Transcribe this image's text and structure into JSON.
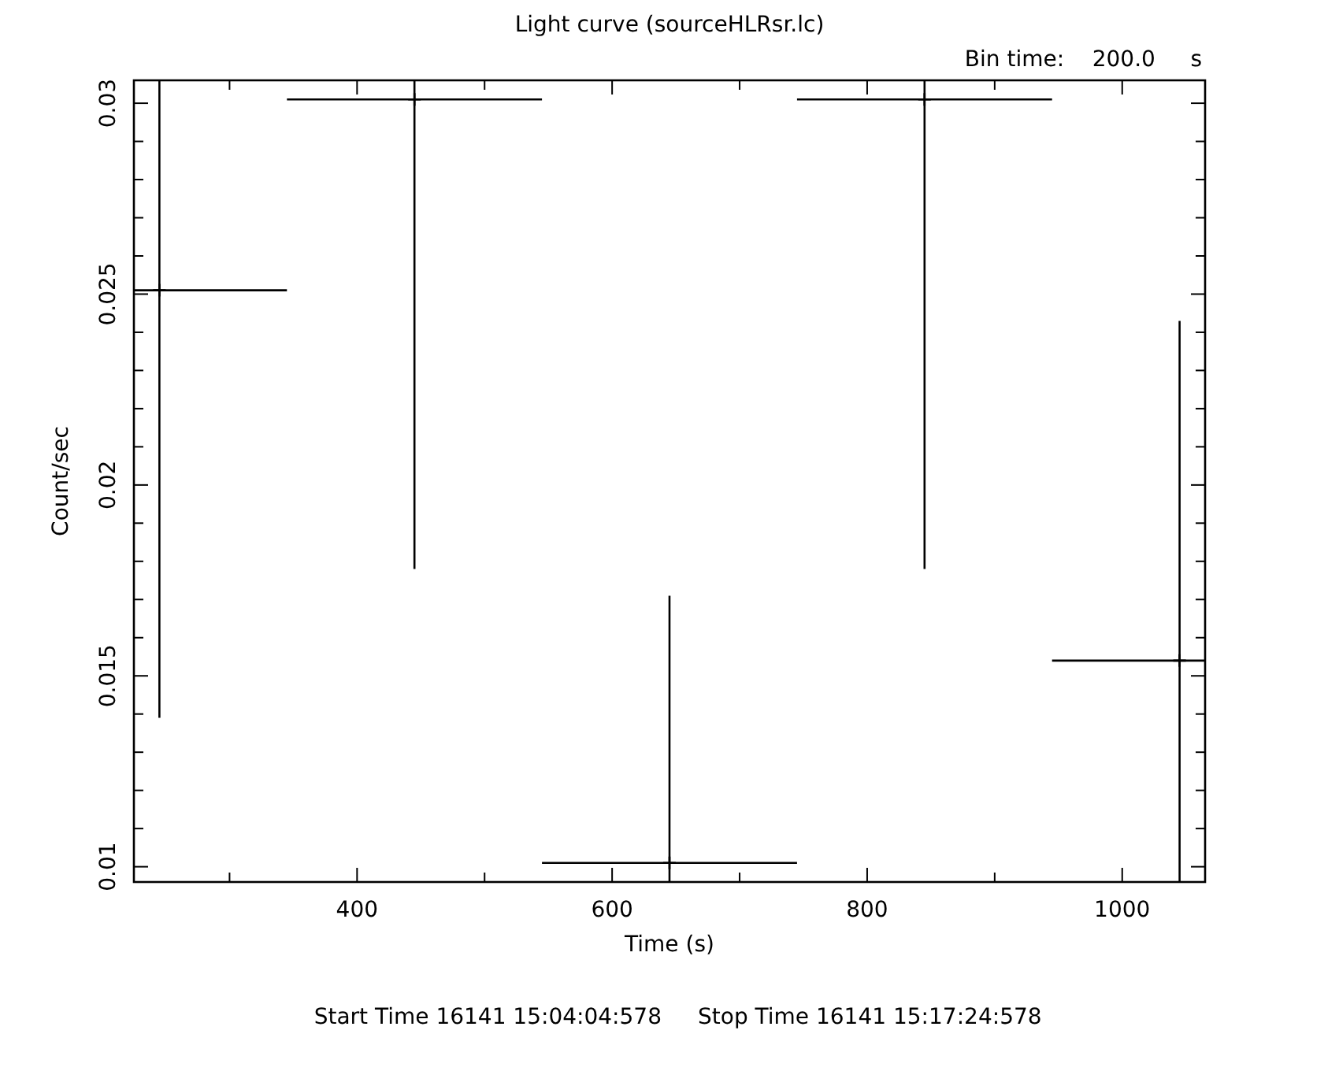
{
  "chart_data": {
    "type": "scatter",
    "title": "Light curve (sourceHLRsr.lc)",
    "xlabel": "Time (s)",
    "ylabel": "Count/sec",
    "annotations": [
      "Bin time:    200.0     s",
      "Start Time 16141 15:04:04:578",
      "Stop Time 16141 15:17:24:578"
    ],
    "x": [
      245,
      445,
      645,
      845,
      1045
    ],
    "series": [
      {
        "color": "#000000",
        "values": [
          0.0251,
          0.0301,
          0.0101,
          0.0301,
          0.0154
        ],
        "errors": [
          [
            0.0139,
            0.0306
          ],
          [
            0.0178,
            0.0306
          ],
          [
            0.0096,
            0.0171
          ],
          [
            0.0178,
            0.0306
          ],
          [
            0.0096,
            0.0243
          ]
        ],
        "xerrors": [
          [
            225,
            345
          ],
          [
            345,
            545
          ],
          [
            545,
            745
          ],
          [
            745,
            945
          ],
          [
            945,
            1065
          ]
        ]
      }
    ],
    "xlim": [
      225,
      1065
    ],
    "ylim": [
      0.0096,
      0.0306
    ],
    "xticks": [
      {
        "value": 300,
        "label": null
      },
      400,
      {
        "value": 500,
        "label": null
      },
      600,
      {
        "value": 700,
        "label": null
      },
      800,
      {
        "value": 900,
        "label": null
      },
      1000
    ],
    "yticks": [
      0.01,
      {
        "value": 0.011,
        "label": null
      },
      {
        "value": 0.012,
        "label": null
      },
      {
        "value": 0.013,
        "label": null
      },
      {
        "value": 0.014,
        "label": null
      },
      0.015,
      {
        "value": 0.016,
        "label": null
      },
      {
        "value": 0.017,
        "label": null
      },
      {
        "value": 0.018,
        "label": null
      },
      {
        "value": 0.019,
        "label": null
      },
      0.02,
      {
        "value": 0.021,
        "label": null
      },
      {
        "value": 0.022,
        "label": null
      },
      {
        "value": 0.023,
        "label": null
      },
      {
        "value": 0.024,
        "label": null
      },
      0.025,
      {
        "value": 0.026,
        "label": null
      },
      {
        "value": 0.027,
        "label": null
      },
      {
        "value": 0.028,
        "label": null
      },
      {
        "value": 0.029,
        "label": null
      },
      0.03
    ],
    "grid": false,
    "marker": "cross"
  }
}
